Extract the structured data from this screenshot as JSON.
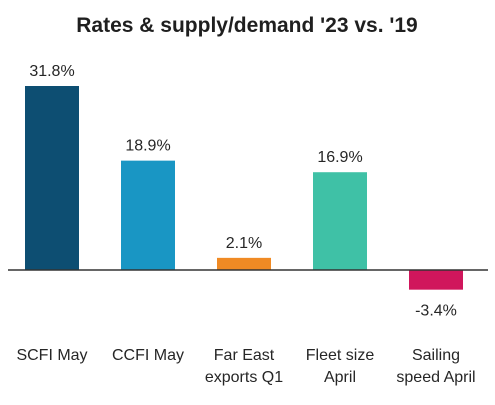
{
  "chart_data": {
    "type": "bar",
    "title": "Rates & supply/demand  '23 vs. '19",
    "categories": [
      [
        "SCFI May"
      ],
      [
        "CCFI May"
      ],
      [
        "Far East",
        "exports Q1"
      ],
      [
        "Fleet size",
        "April"
      ],
      [
        "Sailing",
        "speed April"
      ]
    ],
    "values": [
      31.8,
      18.9,
      2.1,
      16.9,
      -3.4
    ],
    "value_labels": [
      "31.8%",
      "18.9%",
      "2.1%",
      "16.9%",
      "-3.4%"
    ],
    "colors": [
      "#0d4e72",
      "#1996c4",
      "#f08a24",
      "#3fc1a6",
      "#d0165c"
    ],
    "unit": "%",
    "ylim": [
      -3.4,
      31.8
    ],
    "grid": false,
    "legend": "none",
    "baseline_color": "#333333"
  }
}
